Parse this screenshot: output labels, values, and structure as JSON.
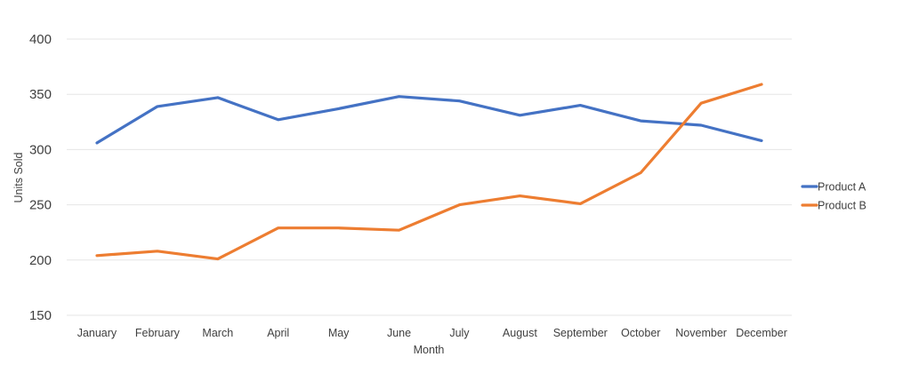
{
  "chart_data": {
    "type": "line",
    "title": "",
    "xlabel": "Month",
    "ylabel": "Units Sold",
    "categories": [
      "January",
      "February",
      "March",
      "April",
      "May",
      "June",
      "July",
      "August",
      "September",
      "October",
      "November",
      "December"
    ],
    "series": [
      {
        "name": "Product A",
        "color": "#4472c4",
        "values": [
          306,
          339,
          347,
          327,
          337,
          348,
          344,
          331,
          340,
          326,
          322,
          308
        ]
      },
      {
        "name": "Product B",
        "color": "#ed7d31",
        "values": [
          204,
          208,
          201,
          229,
          229,
          227,
          250,
          258,
          251,
          279,
          342,
          359
        ]
      }
    ],
    "ylim": [
      150,
      400
    ],
    "yticks": [
      150,
      200,
      250,
      300,
      350,
      400
    ],
    "grid": true,
    "legend_position": "right"
  }
}
